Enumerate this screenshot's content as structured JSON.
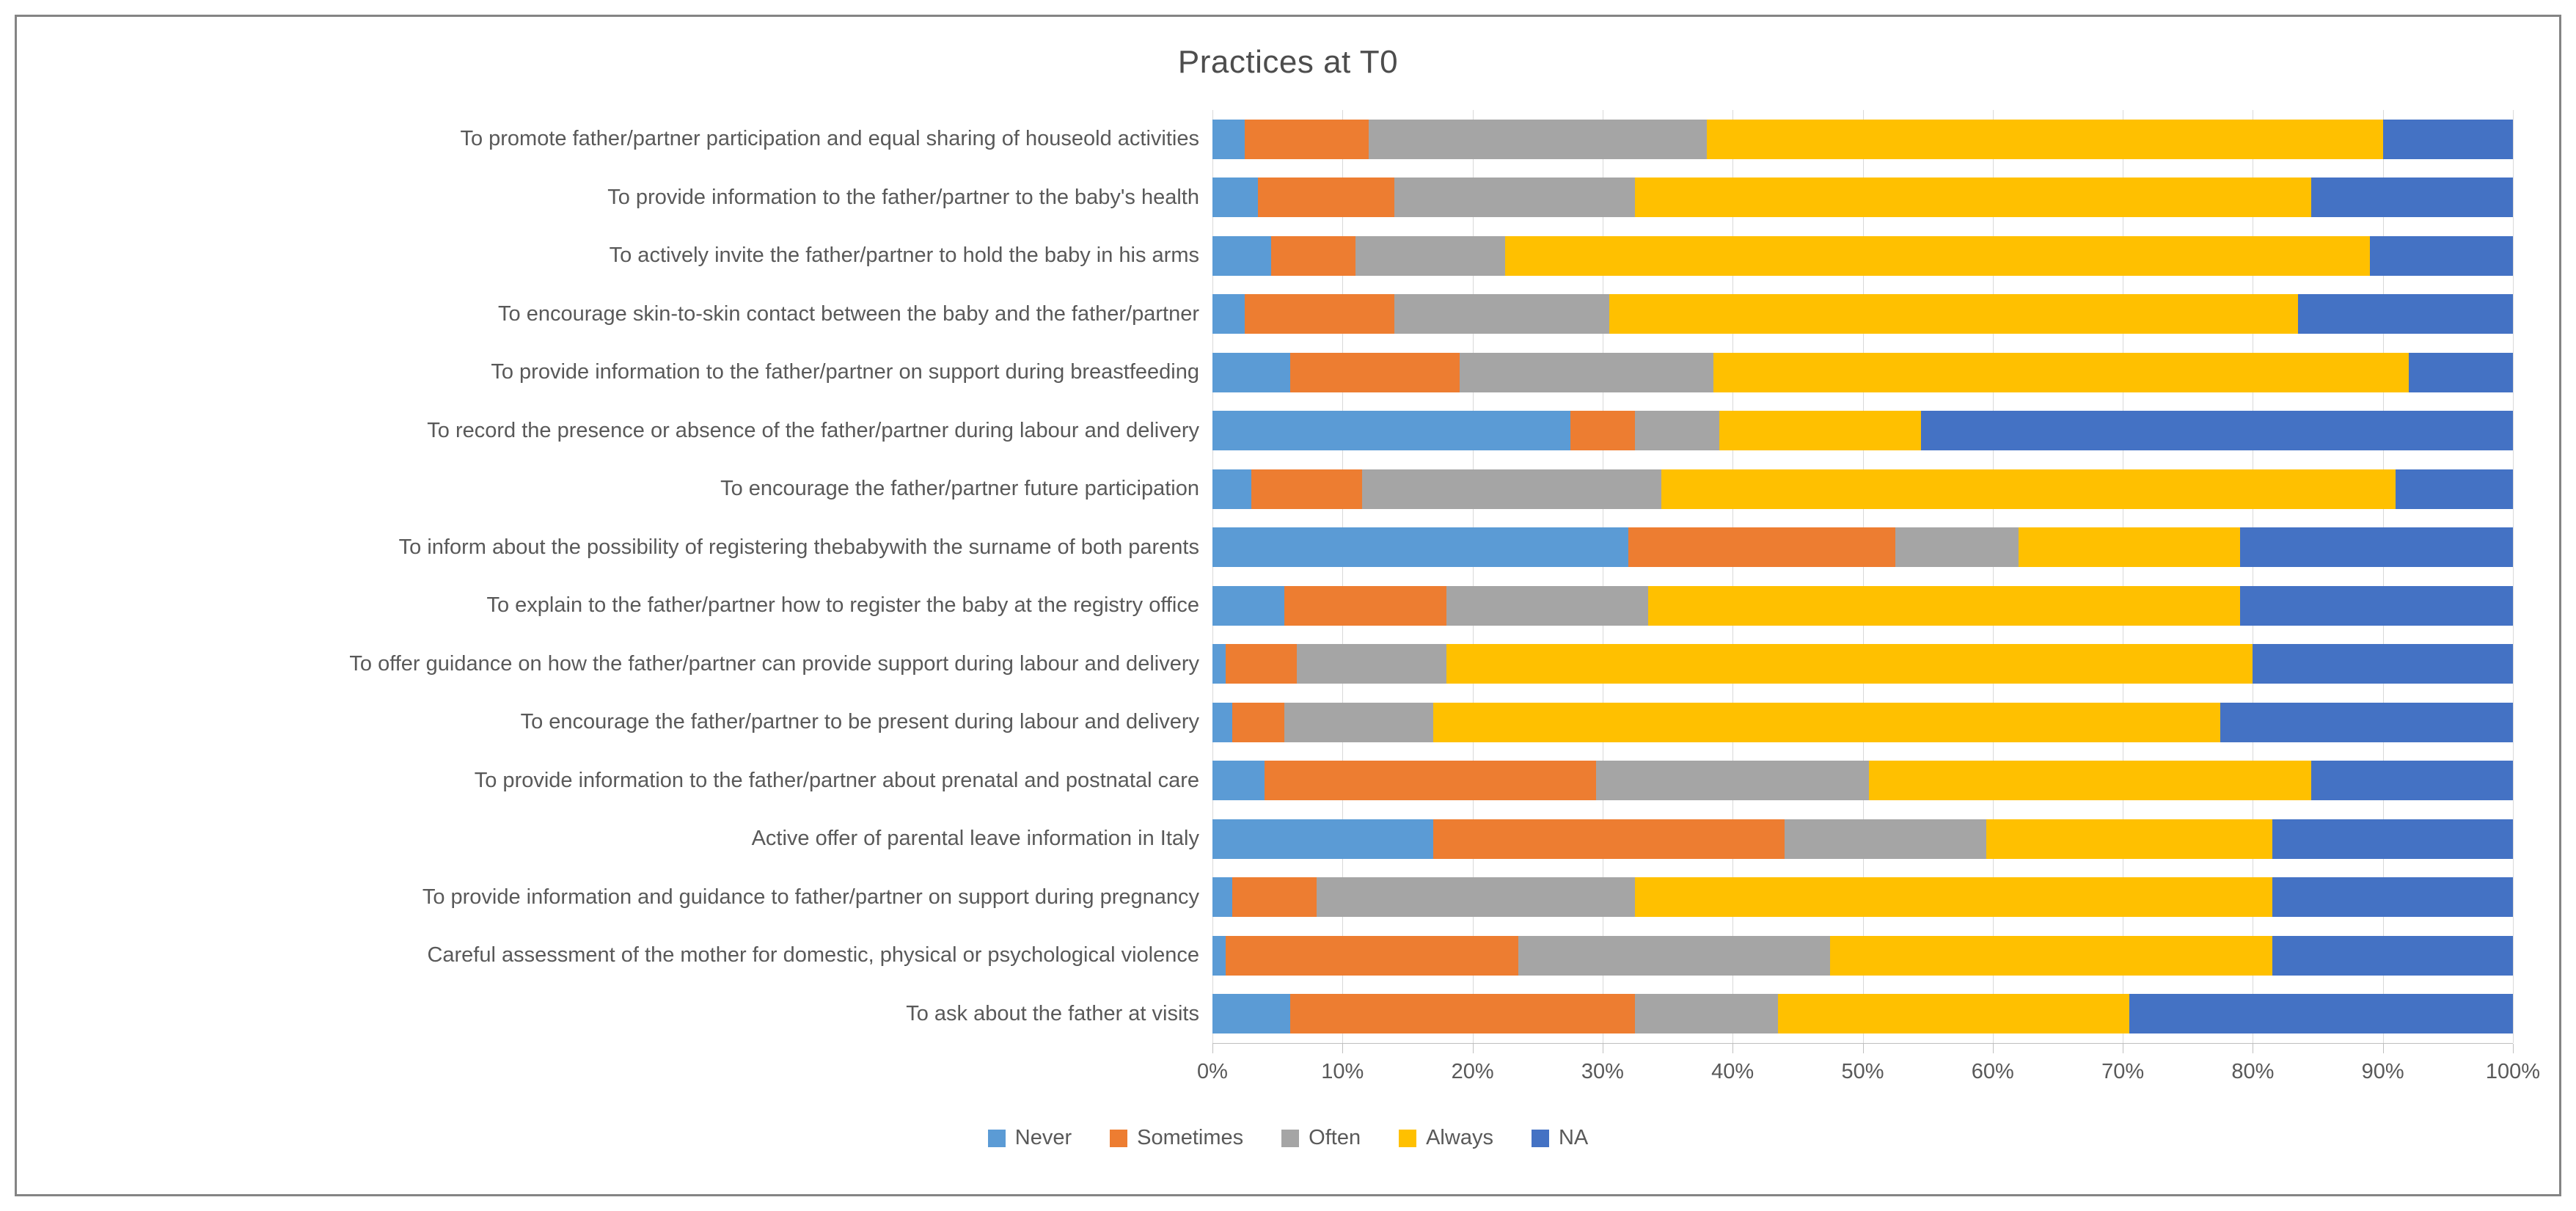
{
  "title": "Practices at T0",
  "chart_data": {
    "type": "bar",
    "stacked": true,
    "orientation": "horizontal",
    "title": "Practices at T0",
    "xlim": [
      0,
      100
    ],
    "grid": true,
    "legend_position": "bottom",
    "x_ticks": [
      "0%",
      "10%",
      "20%",
      "30%",
      "40%",
      "50%",
      "60%",
      "70%",
      "80%",
      "90%",
      "100%"
    ],
    "categories": [
      "To promote father/partner participation and equal sharing of houseold activities",
      "To provide information to the father/partner to the baby's health",
      "To actively invite the father/partner to hold the baby in his arms",
      "To encourage skin-to-skin contact between the baby and the father/partner",
      "To provide information to the father/partner on support during breastfeeding",
      "To record the presence or absence of the father/partner during labour and delivery",
      "To encourage the father/partner future participation",
      "To inform about the possibility of registering thebabywith the surname of both parents",
      "To explain to the father/partner how to register the baby at the registry office",
      "To offer guidance on how the father/partner can provide support during labour and delivery",
      "To encourage the father/partner to be present during labour and delivery",
      "To provide information to the father/partner about prenatal and postnatal care",
      "Active offer of parental leave information in Italy",
      "To provide information and guidance to father/partner on support during pregnancy",
      "Careful assessment of the mother for domestic, physical or psychological violence",
      "To ask about the father at visits"
    ],
    "series": [
      {
        "name": "Never",
        "color": "#5B9BD5",
        "values": [
          2.5,
          3.5,
          4.5,
          2.5,
          6,
          27.5,
          3,
          32,
          5.5,
          1,
          1.5,
          4,
          17,
          1.5,
          1,
          6
        ]
      },
      {
        "name": "Sometimes",
        "color": "#ED7D31",
        "values": [
          9.5,
          10.5,
          6.5,
          11.5,
          13,
          5,
          8.5,
          20.5,
          12.5,
          5.5,
          4,
          25.5,
          27,
          6.5,
          22.5,
          26.5
        ]
      },
      {
        "name": "Often",
        "color": "#A5A5A5",
        "values": [
          26,
          18.5,
          11.5,
          16.5,
          19.5,
          6.5,
          23,
          9.5,
          15.5,
          11.5,
          11.5,
          21,
          15.5,
          24.5,
          24,
          11
        ]
      },
      {
        "name": "Always",
        "color": "#FFC000",
        "values": [
          52,
          52,
          66.5,
          53,
          53.5,
          15.5,
          56.5,
          17,
          45.5,
          62,
          60.5,
          34,
          22,
          49,
          34,
          27
        ]
      },
      {
        "name": "NA",
        "color": "#4472C4",
        "values": [
          10,
          15.5,
          11,
          16.5,
          8,
          45.5,
          9,
          21,
          21,
          20,
          22.5,
          15.5,
          18.5,
          18.5,
          18.5,
          29.5
        ]
      }
    ]
  }
}
